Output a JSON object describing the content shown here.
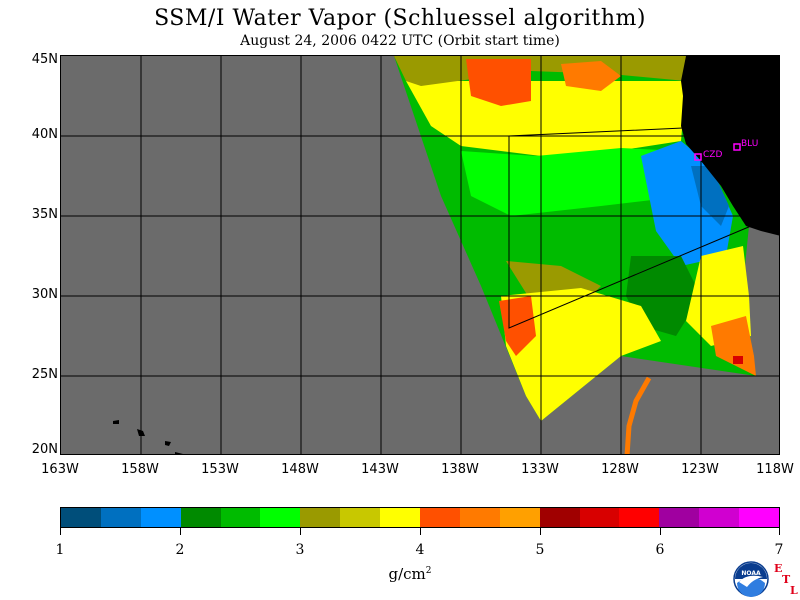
{
  "header": {
    "title": "SSM/I Water Vapor (Schluessel algorithm)",
    "subtitle": "August 24, 2006  0422 UTC  (Orbit start time)"
  },
  "map": {
    "lat_labels": [
      "45N",
      "40N",
      "35N",
      "30N",
      "25N",
      "20N"
    ],
    "lon_labels": [
      "163W",
      "158W",
      "153W",
      "148W",
      "143W",
      "138W",
      "133W",
      "128W",
      "123W",
      "118W"
    ],
    "stations": [
      {
        "code": "CZD",
        "lat": 38.6,
        "lon": -123.2
      },
      {
        "code": "BLU",
        "lat": 39.3,
        "lon": -120.8
      }
    ],
    "colors": {
      "ocean_nodata": "#6b6b6b",
      "land": "#000000",
      "marker": "#ff00ff"
    }
  },
  "colorbar": {
    "units": "g/cm",
    "units_exp": "2",
    "ticks": [
      "1",
      "2",
      "3",
      "4",
      "5",
      "6",
      "7"
    ],
    "colors": [
      "#004e7a",
      "#0070c0",
      "#0090ff",
      "#008a00",
      "#00bb00",
      "#00ff00",
      "#9a9a00",
      "#c8c800",
      "#ffff00",
      "#ff5000",
      "#ff7a00",
      "#ffa000",
      "#a00000",
      "#d80000",
      "#ff0000",
      "#a000a0",
      "#d000d0",
      "#ff00ff"
    ]
  },
  "logo": {
    "text": "NOAA",
    "etl": [
      "E",
      "T",
      "L"
    ]
  }
}
